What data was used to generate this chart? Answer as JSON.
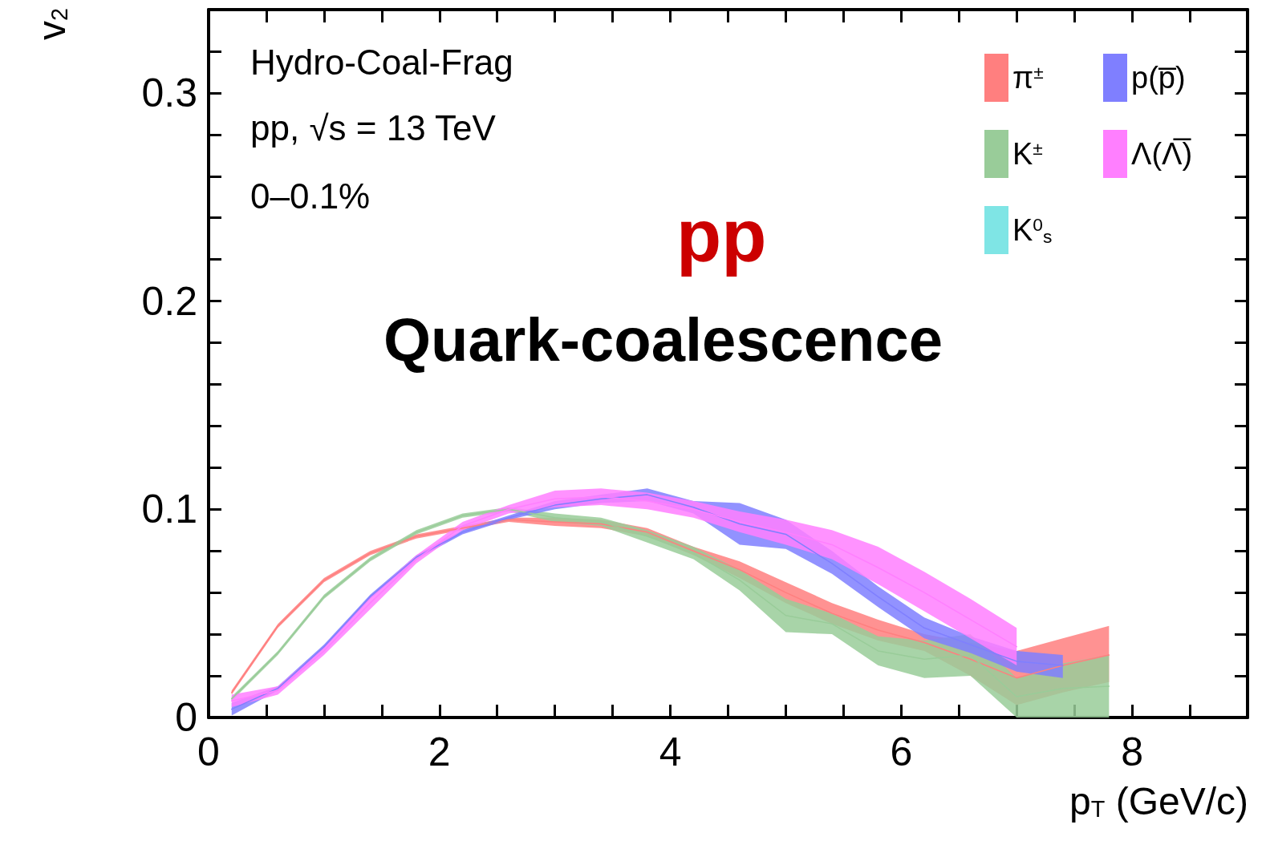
{
  "chart_data": {
    "type": "line",
    "xlabel": "p$_{T}$ (GeV/c)",
    "ylabel": "v$_{2}$",
    "annotations": [
      "Hydro-Coal-Frag",
      "pp, √s = 13 TeV",
      "0–0.1%",
      "pp",
      "Quark-coalescence"
    ],
    "x": [
      0.2,
      0.6,
      1.0,
      1.4,
      1.8,
      2.2,
      2.6,
      3.0,
      3.4,
      3.8,
      4.2,
      4.6,
      5.0,
      5.4,
      5.8,
      6.2,
      6.6,
      7.0,
      7.4,
      7.8
    ],
    "series": [
      {
        "name": "π$^{±}$",
        "color": "#ff7f7f",
        "values": [
          0.012,
          0.044,
          0.066,
          0.079,
          0.087,
          0.091,
          0.095,
          0.094,
          0.093,
          0.089,
          0.08,
          0.071,
          0.06,
          0.05,
          0.042,
          0.036,
          0.028,
          0.019,
          0.025,
          0.03
        ],
        "lower": [
          0.011,
          0.043,
          0.065,
          0.078,
          0.086,
          0.09,
          0.094,
          0.092,
          0.091,
          0.087,
          0.078,
          0.067,
          0.055,
          0.045,
          0.037,
          0.032,
          0.02,
          0.006,
          0.012,
          0.017
        ],
        "upper": [
          0.013,
          0.045,
          0.067,
          0.08,
          0.088,
          0.092,
          0.096,
          0.096,
          0.095,
          0.091,
          0.082,
          0.075,
          0.065,
          0.055,
          0.047,
          0.04,
          0.036,
          0.032,
          0.038,
          0.044
        ]
      },
      {
        "name": "K$^{±}$",
        "color": "#99cc99",
        "values": [
          0.009,
          0.031,
          0.058,
          0.076,
          0.089,
          0.097,
          0.1,
          0.096,
          0.094,
          0.087,
          0.079,
          0.066,
          0.049,
          0.045,
          0.032,
          0.028,
          0.03,
          0.01,
          0.014,
          0.015
        ],
        "lower": [
          0.008,
          0.03,
          0.057,
          0.075,
          0.088,
          0.096,
          0.099,
          0.094,
          0.092,
          0.084,
          0.076,
          0.061,
          0.041,
          0.04,
          0.025,
          0.019,
          0.02,
          0.0,
          0.0,
          0.0
        ],
        "upper": [
          0.01,
          0.032,
          0.059,
          0.077,
          0.09,
          0.098,
          0.101,
          0.098,
          0.096,
          0.09,
          0.082,
          0.071,
          0.057,
          0.05,
          0.039,
          0.037,
          0.04,
          0.019,
          0.026,
          0.03
        ]
      },
      {
        "name": "K$^{0}$$_{s}$",
        "color": "#7fe5e5",
        "values": [
          null,
          null,
          null,
          null,
          null,
          null,
          null,
          null,
          null,
          null,
          null,
          null,
          null,
          null,
          null,
          null,
          null,
          null,
          null,
          null
        ]
      },
      {
        "name": "p(p̅)",
        "color": "#7f7fff",
        "values": [
          0.004,
          0.014,
          0.034,
          0.058,
          0.077,
          0.089,
          0.096,
          0.102,
          0.105,
          0.107,
          0.101,
          0.093,
          0.088,
          0.074,
          0.058,
          0.043,
          0.035,
          0.027,
          0.025,
          null
        ],
        "lower": [
          0.001,
          0.013,
          0.033,
          0.057,
          0.076,
          0.088,
          0.095,
          0.1,
          0.103,
          0.104,
          0.098,
          0.083,
          0.081,
          0.069,
          0.053,
          0.038,
          0.031,
          0.022,
          0.019,
          null
        ],
        "upper": [
          0.007,
          0.015,
          0.035,
          0.059,
          0.078,
          0.09,
          0.097,
          0.104,
          0.107,
          0.11,
          0.104,
          0.103,
          0.095,
          0.08,
          0.063,
          0.048,
          0.039,
          0.032,
          0.03,
          null
        ]
      },
      {
        "name": "Λ(Λ̅)",
        "color": "#ff7fff",
        "values": [
          0.008,
          0.013,
          0.032,
          0.055,
          0.076,
          0.092,
          0.1,
          0.105,
          0.106,
          0.104,
          0.1,
          0.094,
          0.089,
          0.083,
          0.072,
          0.06,
          0.047,
          0.034,
          null,
          null
        ],
        "lower": [
          0.005,
          0.011,
          0.03,
          0.052,
          0.074,
          0.09,
          0.098,
          0.101,
          0.102,
          0.1,
          0.096,
          0.089,
          0.083,
          0.076,
          0.064,
          0.051,
          0.038,
          0.025,
          null,
          null
        ],
        "upper": [
          0.011,
          0.015,
          0.034,
          0.058,
          0.078,
          0.094,
          0.102,
          0.109,
          0.11,
          0.108,
          0.104,
          0.099,
          0.095,
          0.09,
          0.082,
          0.07,
          0.057,
          0.043,
          null,
          null
        ]
      }
    ],
    "xlim": [
      0,
      9
    ],
    "ylim": [
      0,
      0.34
    ],
    "xticks": [
      0,
      {
        "value": 0.5,
        "label": null
      },
      {
        "value": 1,
        "label": null
      },
      {
        "value": 1.5,
        "label": null
      },
      2,
      {
        "value": 2.5,
        "label": null
      },
      {
        "value": 3,
        "label": null
      },
      {
        "value": 3.5,
        "label": null
      },
      4,
      {
        "value": 4.5,
        "label": null
      },
      {
        "value": 5,
        "label": null
      },
      {
        "value": 5.5,
        "label": null
      },
      6,
      {
        "value": 6.5,
        "label": null
      },
      {
        "value": 7,
        "label": null
      },
      {
        "value": 7.5,
        "label": null
      },
      8,
      {
        "value": 8.5,
        "label": null
      },
      {
        "value": 9,
        "label": null
      }
    ],
    "yticks": [
      0,
      {
        "value": 0.02,
        "label": null
      },
      {
        "value": 0.04,
        "label": null
      },
      {
        "value": 0.06,
        "label": null
      },
      {
        "value": 0.08,
        "label": null
      },
      0.1,
      {
        "value": 0.12,
        "label": null
      },
      {
        "value": 0.14,
        "label": null
      },
      {
        "value": 0.16,
        "label": null
      },
      {
        "value": 0.18,
        "label": null
      },
      0.2,
      {
        "value": 0.22,
        "label": null
      },
      {
        "value": 0.24,
        "label": null
      },
      {
        "value": 0.26,
        "label": null
      },
      {
        "value": 0.28,
        "label": null
      },
      0.3,
      {
        "value": 0.32,
        "label": null
      },
      {
        "value": 0.34,
        "label": null
      }
    ],
    "grid": false,
    "legend": "top right",
    "marker": "none",
    "line_style": "solid"
  }
}
